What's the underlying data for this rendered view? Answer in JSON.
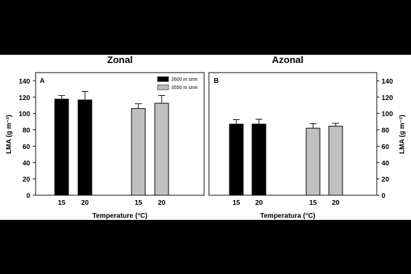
{
  "chart_data": [
    {
      "type": "bar",
      "panel_letter": "A",
      "title": "Zonal",
      "xlabel": "Temperature (°C)",
      "ylabel": "LMA (g m⁻²)",
      "ylim": [
        0,
        150
      ],
      "yticks": [
        0,
        20,
        40,
        60,
        80,
        100,
        120,
        140
      ],
      "y_axis_side": "left",
      "legend_position": "top-right",
      "categories": [
        "15",
        "20"
      ],
      "series": [
        {
          "name": "2600 m snm",
          "color": "#000000",
          "values": [
            117.5,
            116.5
          ],
          "errors": [
            4.5,
            10.5
          ]
        },
        {
          "name": "3550 m snm",
          "color": "#c0c0c0",
          "values": [
            106,
            112.5
          ],
          "errors": [
            6,
            9.5
          ]
        }
      ]
    },
    {
      "type": "bar",
      "panel_letter": "B",
      "title": "Azonal",
      "xlabel": "Temperatura (°C)",
      "ylabel": "LMA (g m⁻²)",
      "ylim": [
        0,
        150
      ],
      "yticks": [
        0,
        20,
        40,
        60,
        80,
        100,
        120,
        140
      ],
      "y_axis_side": "right",
      "categories": [
        "15",
        "20"
      ],
      "series": [
        {
          "name": "2600 m snm",
          "color": "#000000",
          "values": [
            87,
            87
          ],
          "errors": [
            5.5,
            6
          ]
        },
        {
          "name": "3550 m snm",
          "color": "#c0c0c0",
          "values": [
            82,
            84.5
          ],
          "errors": [
            5.5,
            3.5
          ]
        }
      ]
    }
  ]
}
